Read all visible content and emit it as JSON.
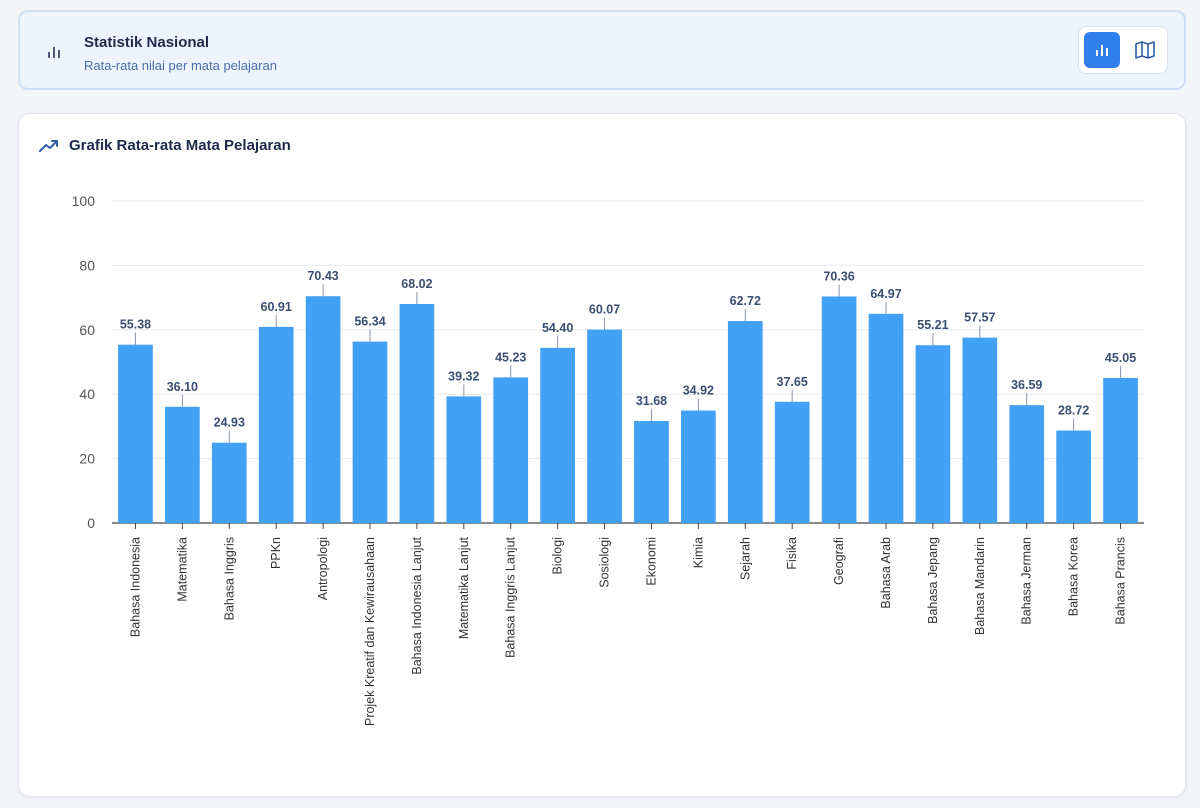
{
  "header": {
    "title": "Statistik Nasional",
    "subtitle": "Rata-rata nilai per mata pelajaran",
    "icon": "bar-chart-icon",
    "toggle": {
      "options": [
        {
          "name": "chart-view",
          "icon": "bar-chart-icon",
          "active": true
        },
        {
          "name": "map-view",
          "icon": "map-icon",
          "active": false
        }
      ]
    }
  },
  "chart_card": {
    "title": "Grafik Rata-rata Mata Pelajaran",
    "icon": "trending-up-icon"
  },
  "colors": {
    "bar": "#42a0f5",
    "accent": "#2f80ed",
    "grid": "#e6e9ee"
  },
  "chart_data": {
    "type": "bar",
    "categories": [
      "Bahasa Indonesia",
      "Matematika",
      "Bahasa Inggris",
      "PPKn",
      "Antropologi",
      "Projek Kreatif dan Kewirausahaan",
      "Bahasa Indonesia Lanjut",
      "Matematika Lanjut",
      "Bahasa Inggris Lanjut",
      "Biologi",
      "Sosiologi",
      "Ekonomi",
      "Kimia",
      "Sejarah",
      "Fisika",
      "Geografi",
      "Bahasa Arab",
      "Bahasa Jepang",
      "Bahasa Mandarin",
      "Bahasa Jerman",
      "Bahasa Korea",
      "Bahasa Prancis"
    ],
    "values": [
      55.38,
      36.1,
      24.93,
      60.91,
      70.43,
      56.34,
      68.02,
      39.32,
      45.23,
      54.4,
      60.07,
      31.68,
      34.92,
      62.72,
      37.65,
      70.36,
      64.97,
      55.21,
      57.57,
      36.59,
      28.72,
      45.05
    ],
    "value_labels": [
      "55.38",
      "36.10",
      "24.93",
      "60.91",
      "70.43",
      "56.34",
      "68.02",
      "39.32",
      "45.23",
      "54.40",
      "60.07",
      "31.68",
      "34.92",
      "62.72",
      "37.65",
      "70.36",
      "64.97",
      "55.21",
      "57.57",
      "36.59",
      "28.72",
      "45.05"
    ],
    "ylim": [
      0,
      100
    ],
    "yticks": [
      "0",
      "20",
      "40",
      "60",
      "80",
      "100"
    ],
    "grid": true,
    "legend": "none"
  }
}
